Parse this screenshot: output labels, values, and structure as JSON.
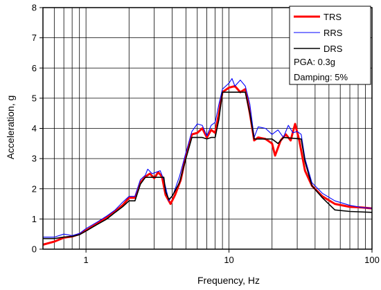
{
  "chart_data": {
    "type": "line",
    "xlabel": "Frequency, Hz",
    "ylabel": "Acceleration, g",
    "xscale": "log",
    "xlim": [
      0.5,
      100
    ],
    "ylim": [
      0,
      8
    ],
    "x_ticks": [
      1,
      10,
      100
    ],
    "x_tick_labels": [
      "1",
      "10",
      "100"
    ],
    "y_ticks": [
      0,
      1,
      2,
      3,
      4,
      5,
      6,
      7,
      8
    ],
    "y_tick_labels": [
      "0",
      "1",
      "2",
      "3",
      "4",
      "5",
      "6",
      "7",
      "8"
    ],
    "grid": true,
    "legend_position": "top-right",
    "annotations": [
      "PGA: 0.3g",
      "Damping: 5%"
    ],
    "series": [
      {
        "name": "TRS",
        "color": "#ff0000",
        "points": [
          [
            0.5,
            0.15
          ],
          [
            0.6,
            0.25
          ],
          [
            0.7,
            0.38
          ],
          [
            0.8,
            0.42
          ],
          [
            0.9,
            0.5
          ],
          [
            1.0,
            0.62
          ],
          [
            1.2,
            0.85
          ],
          [
            1.4,
            1.05
          ],
          [
            1.6,
            1.25
          ],
          [
            1.8,
            1.45
          ],
          [
            2.0,
            1.7
          ],
          [
            2.2,
            1.7
          ],
          [
            2.4,
            2.2
          ],
          [
            2.6,
            2.4
          ],
          [
            2.8,
            2.5
          ],
          [
            3.0,
            2.35
          ],
          [
            3.2,
            2.55
          ],
          [
            3.4,
            2.4
          ],
          [
            3.6,
            1.8
          ],
          [
            3.9,
            1.5
          ],
          [
            4.2,
            1.8
          ],
          [
            4.6,
            2.3
          ],
          [
            5.0,
            3.1
          ],
          [
            5.5,
            3.8
          ],
          [
            6.0,
            3.85
          ],
          [
            6.5,
            4.0
          ],
          [
            7.0,
            3.7
          ],
          [
            7.5,
            3.95
          ],
          [
            8.0,
            3.85
          ],
          [
            8.5,
            4.5
          ],
          [
            9.0,
            5.2
          ],
          [
            10.0,
            5.35
          ],
          [
            11.0,
            5.4
          ],
          [
            12.0,
            5.2
          ],
          [
            13.0,
            5.3
          ],
          [
            14.0,
            4.5
          ],
          [
            15.0,
            3.6
          ],
          [
            16.0,
            3.7
          ],
          [
            18.0,
            3.65
          ],
          [
            20.0,
            3.5
          ],
          [
            21.0,
            3.1
          ],
          [
            23.0,
            3.6
          ],
          [
            25.0,
            3.8
          ],
          [
            27.0,
            3.6
          ],
          [
            29.0,
            4.15
          ],
          [
            31.0,
            3.6
          ],
          [
            34.0,
            2.6
          ],
          [
            38.0,
            2.1
          ],
          [
            45.0,
            1.75
          ],
          [
            55.0,
            1.5
          ],
          [
            70.0,
            1.4
          ],
          [
            85.0,
            1.38
          ],
          [
            100.0,
            1.35
          ]
        ]
      },
      {
        "name": "RRS",
        "color": "#0000ff",
        "points": [
          [
            0.5,
            0.4
          ],
          [
            0.6,
            0.4
          ],
          [
            0.7,
            0.5
          ],
          [
            0.8,
            0.45
          ],
          [
            0.9,
            0.52
          ],
          [
            1.0,
            0.68
          ],
          [
            1.2,
            0.9
          ],
          [
            1.4,
            1.1
          ],
          [
            1.6,
            1.3
          ],
          [
            1.8,
            1.55
          ],
          [
            2.0,
            1.75
          ],
          [
            2.2,
            1.75
          ],
          [
            2.4,
            2.3
          ],
          [
            2.6,
            2.45
          ],
          [
            2.7,
            2.65
          ],
          [
            2.9,
            2.5
          ],
          [
            3.1,
            2.55
          ],
          [
            3.3,
            2.6
          ],
          [
            3.5,
            2.3
          ],
          [
            3.8,
            1.6
          ],
          [
            4.1,
            1.85
          ],
          [
            4.5,
            2.4
          ],
          [
            5.0,
            3.2
          ],
          [
            5.5,
            3.9
          ],
          [
            6.0,
            4.15
          ],
          [
            6.5,
            4.1
          ],
          [
            7.0,
            3.75
          ],
          [
            7.5,
            4.1
          ],
          [
            8.0,
            4.2
          ],
          [
            8.5,
            4.8
          ],
          [
            9.0,
            5.3
          ],
          [
            10.0,
            5.5
          ],
          [
            10.5,
            5.65
          ],
          [
            11.0,
            5.4
          ],
          [
            12.0,
            5.6
          ],
          [
            13.0,
            5.4
          ],
          [
            14.0,
            4.8
          ],
          [
            15.0,
            3.7
          ],
          [
            16.0,
            4.05
          ],
          [
            18.0,
            4.0
          ],
          [
            20.0,
            3.8
          ],
          [
            22.0,
            3.95
          ],
          [
            24.0,
            3.7
          ],
          [
            26.0,
            4.1
          ],
          [
            28.0,
            3.85
          ],
          [
            30.0,
            3.9
          ],
          [
            32.0,
            3.8
          ],
          [
            34.0,
            3.0
          ],
          [
            38.0,
            2.2
          ],
          [
            45.0,
            1.85
          ],
          [
            55.0,
            1.6
          ],
          [
            70.0,
            1.45
          ],
          [
            85.0,
            1.38
          ],
          [
            100.0,
            1.35
          ]
        ]
      },
      {
        "name": "DRS",
        "color": "#000000",
        "points": [
          [
            0.5,
            0.35
          ],
          [
            0.6,
            0.35
          ],
          [
            0.7,
            0.4
          ],
          [
            0.8,
            0.42
          ],
          [
            0.9,
            0.48
          ],
          [
            1.0,
            0.6
          ],
          [
            1.2,
            0.82
          ],
          [
            1.4,
            1.0
          ],
          [
            1.6,
            1.22
          ],
          [
            1.8,
            1.4
          ],
          [
            2.0,
            1.6
          ],
          [
            2.2,
            1.6
          ],
          [
            2.4,
            2.15
          ],
          [
            2.6,
            2.38
          ],
          [
            3.5,
            2.38
          ],
          [
            3.6,
            1.9
          ],
          [
            3.8,
            1.65
          ],
          [
            4.0,
            1.75
          ],
          [
            4.5,
            2.2
          ],
          [
            5.0,
            3.0
          ],
          [
            5.5,
            3.7
          ],
          [
            6.0,
            3.7
          ],
          [
            6.5,
            3.7
          ],
          [
            7.0,
            3.65
          ],
          [
            7.5,
            3.7
          ],
          [
            8.0,
            3.7
          ],
          [
            8.5,
            4.3
          ],
          [
            9.0,
            5.2
          ],
          [
            13.0,
            5.2
          ],
          [
            14.0,
            4.5
          ],
          [
            15.0,
            3.65
          ],
          [
            20.0,
            3.65
          ],
          [
            22.0,
            3.5
          ],
          [
            24.0,
            3.7
          ],
          [
            32.0,
            3.65
          ],
          [
            34.0,
            2.9
          ],
          [
            38.0,
            2.1
          ],
          [
            45.0,
            1.7
          ],
          [
            55.0,
            1.3
          ],
          [
            70.0,
            1.25
          ],
          [
            100.0,
            1.22
          ]
        ]
      }
    ]
  }
}
